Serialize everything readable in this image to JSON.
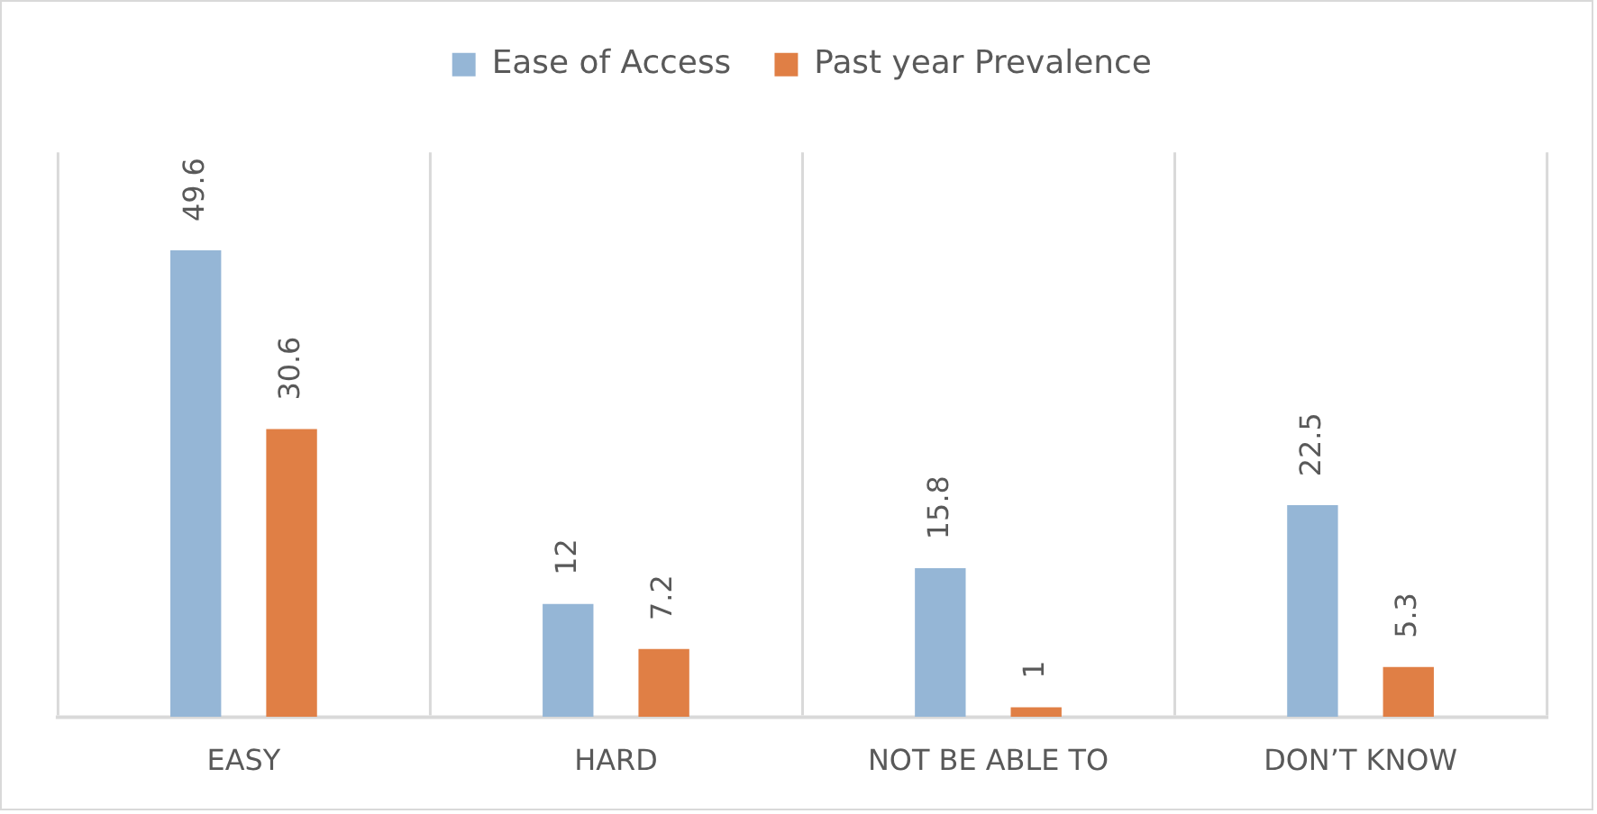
{
  "chart_data": {
    "type": "bar",
    "categories": [
      "EASY",
      "HARD",
      "NOT BE ABLE TO",
      "DON’T KNOW"
    ],
    "series": [
      {
        "name": "Ease of Access",
        "color": "#95b6d6",
        "values": [
          49.6,
          12,
          15.8,
          22.5
        ]
      },
      {
        "name": "Past year Prevalence",
        "color": "#e07f45",
        "values": [
          30.6,
          7.2,
          1,
          5.3
        ]
      }
    ],
    "data_labels": true,
    "grid": "x",
    "legend": "top"
  }
}
